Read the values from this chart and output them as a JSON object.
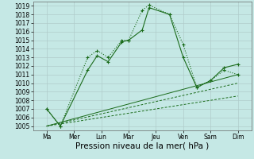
{
  "background_color": "#c5e8e5",
  "grid_color": "#b0ccca",
  "line_color": "#1a6b1a",
  "x_labels": [
    "Ma",
    "Mer",
    "Lun",
    "Mar",
    "Jeu",
    "Ven",
    "Sam",
    "Dim"
  ],
  "ylim_min": 1004.5,
  "ylim_max": 1019.5,
  "yticks": [
    1005,
    1006,
    1007,
    1008,
    1009,
    1010,
    1011,
    1012,
    1013,
    1014,
    1015,
    1016,
    1017,
    1018,
    1019
  ],
  "series_dotted": {
    "x": [
      0,
      1,
      3,
      3.7,
      4.5,
      5.5,
      6,
      7,
      7.5,
      9,
      10,
      11,
      12,
      13,
      14
    ],
    "y": [
      1007,
      1005,
      1013,
      1013.8,
      1013,
      1015,
      1015,
      1018.5,
      1019.1,
      1018,
      1014.5,
      1009.5,
      1010.3,
      1011.5,
      1011
    ]
  },
  "series_solid": {
    "x": [
      0,
      1,
      3,
      3.7,
      4.5,
      5.5,
      6,
      7,
      7.5,
      9,
      10,
      11,
      12,
      13,
      14
    ],
    "y": [
      1007,
      1005,
      1011.5,
      1013.2,
      1012.5,
      1014.8,
      1015,
      1016.2,
      1018.8,
      1018,
      1013,
      1009.5,
      1010.3,
      1011.8,
      1012.2
    ]
  },
  "trend1": {
    "x": [
      0,
      14
    ],
    "y": [
      1005,
      1011
    ]
  },
  "trend2": {
    "x": [
      0,
      14
    ],
    "y": [
      1005,
      1008.5
    ]
  },
  "trend3": {
    "x": [
      0,
      14
    ],
    "y": [
      1005,
      1010
    ]
  },
  "xlabel": "Pression niveau de la mer( hPa )",
  "xlabel_fontsize": 7.5,
  "tick_fontsize": 5.5
}
